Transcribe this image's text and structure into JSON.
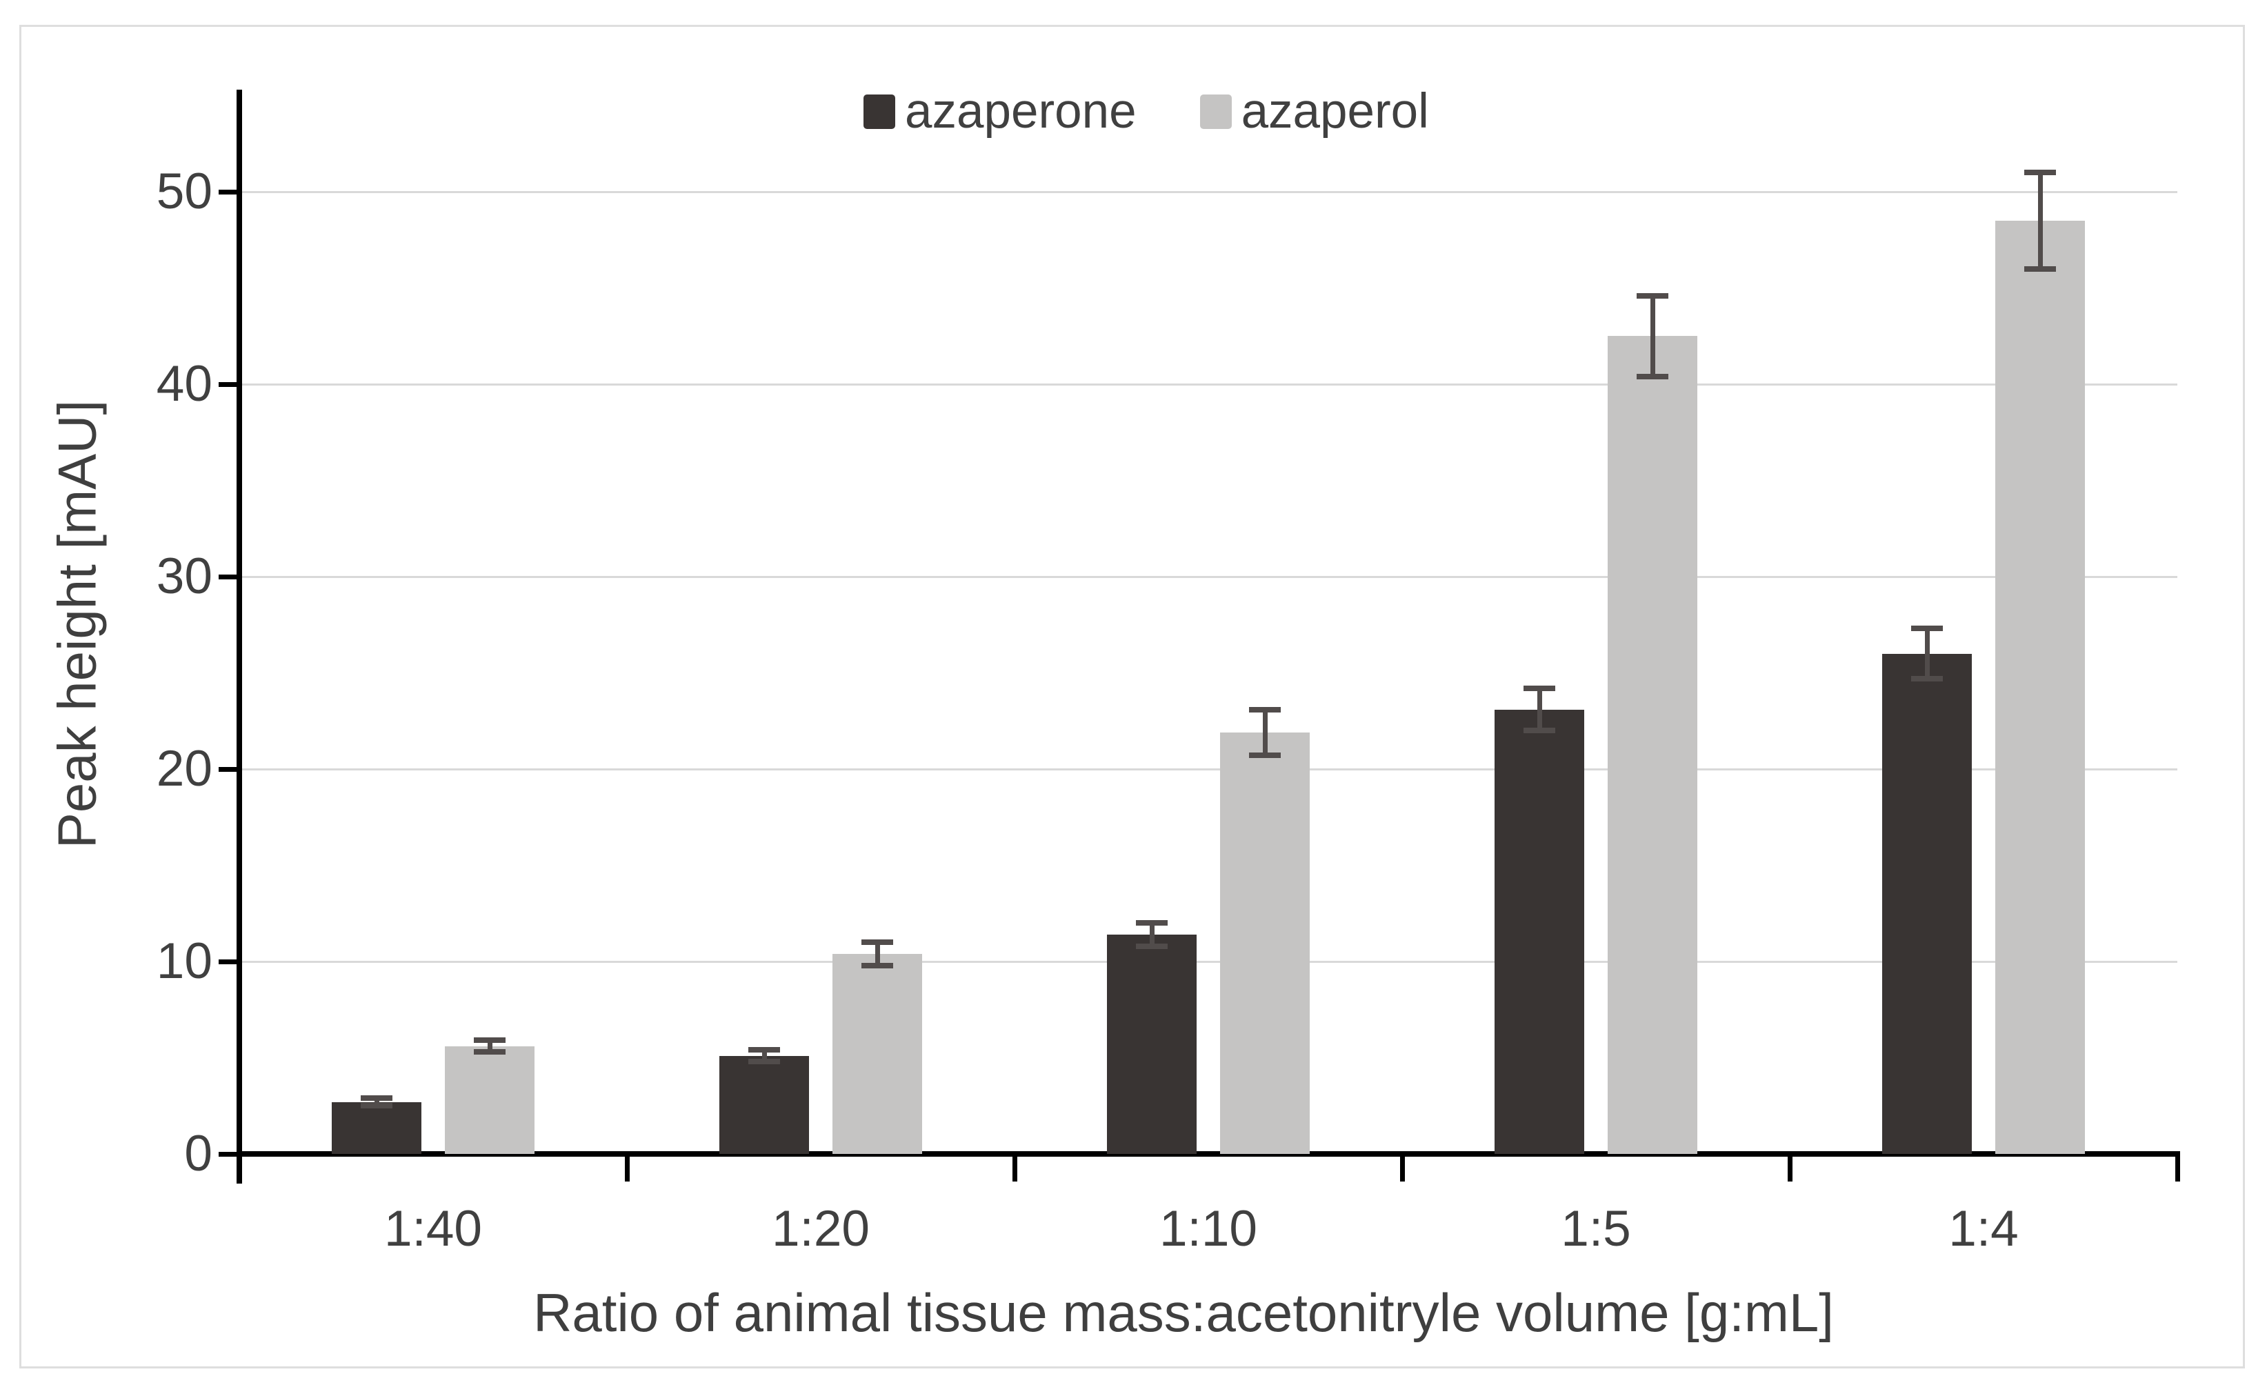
{
  "chart_data": {
    "type": "bar",
    "title": "",
    "xlabel": "Ratio of animal tissue mass:acetonitryle volume [g:mL]",
    "ylabel": "Peak height [mAU]",
    "categories": [
      "1:40",
      "1:20",
      "1:10",
      "1:5",
      "1:4"
    ],
    "series": [
      {
        "name": "azaperone",
        "color": "#393433",
        "values": [
          2.7,
          5.1,
          11.4,
          23.1,
          26.0
        ],
        "errors": [
          0.2,
          0.3,
          0.6,
          1.1,
          1.3
        ]
      },
      {
        "name": "azaperol",
        "color": "#c5c4c3",
        "values": [
          5.6,
          10.4,
          21.9,
          42.5,
          48.5
        ],
        "errors": [
          0.3,
          0.6,
          1.2,
          2.1,
          2.5
        ]
      }
    ],
    "yticks": [
      0,
      10,
      20,
      30,
      40,
      50
    ],
    "ylim": [
      0,
      55
    ],
    "grid": true,
    "legend_position": "top",
    "error_bar_color": "#514c4b",
    "gridline_color": "#d9d9d9",
    "axis_color": "#000000",
    "tick_label_color": "#404040"
  }
}
